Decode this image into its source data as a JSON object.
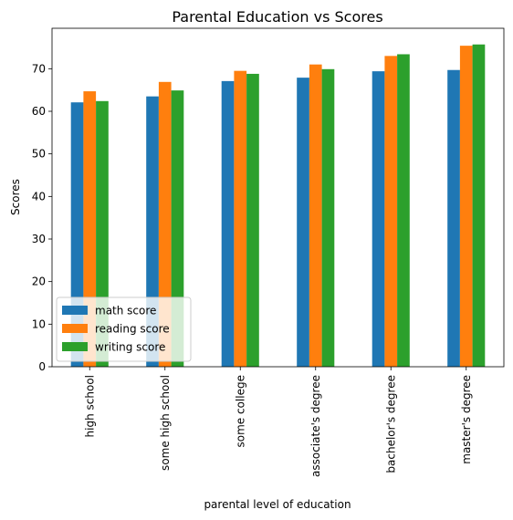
{
  "chart_data": {
    "type": "bar",
    "title": "Parental Education vs Scores",
    "xlabel": "parental level of education",
    "ylabel": "Scores",
    "categories": [
      "high school",
      "some high school",
      "some college",
      "associate's degree",
      "bachelor's degree",
      "master's degree"
    ],
    "series": [
      {
        "name": "math score",
        "color": "#1f77b4",
        "values": [
          62.1,
          63.5,
          67.1,
          67.9,
          69.4,
          69.7
        ]
      },
      {
        "name": "reading score",
        "color": "#ff7f0e",
        "values": [
          64.7,
          66.9,
          69.5,
          71.0,
          73.0,
          75.4
        ]
      },
      {
        "name": "writing score",
        "color": "#2ca02c",
        "values": [
          62.4,
          64.9,
          68.8,
          69.9,
          73.4,
          75.7
        ]
      }
    ],
    "ylim": [
      0,
      79.5
    ],
    "yticks": [
      0,
      10,
      20,
      30,
      40,
      50,
      60,
      70
    ],
    "grid": false,
    "legend_position": "lower-left"
  }
}
